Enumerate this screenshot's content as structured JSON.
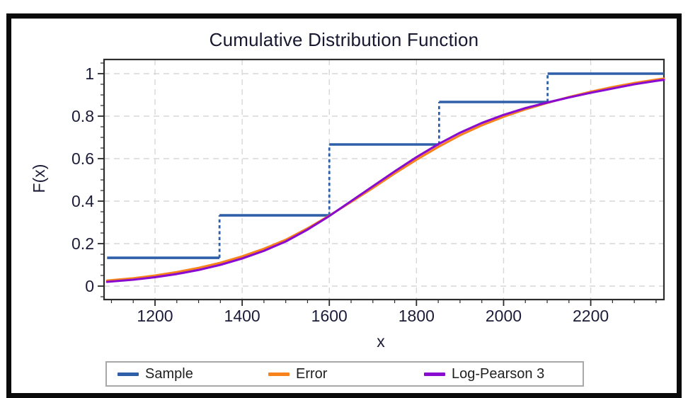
{
  "frame": {
    "border_color": "#0a0a0a",
    "background": "#ffffff"
  },
  "legend": {
    "position": "bottom",
    "items": [
      {
        "label": "Sample",
        "color": "#2e5fa8"
      },
      {
        "label": "Error",
        "color": "#f8821c"
      },
      {
        "label": "Log-Pearson 3",
        "color": "#8a0bd0"
      }
    ]
  },
  "chart_data": {
    "type": "line",
    "title": "Cumulative Distribution Function",
    "xlabel": "x",
    "ylabel": "F(x)",
    "xlim": [
      1083,
      2368
    ],
    "ylim": [
      -0.0633,
      1.0667
    ],
    "x_major_ticks": [
      1200,
      1400,
      1600,
      1800,
      2000,
      2200
    ],
    "x_minor_step": 50,
    "y_major_ticks": [
      0,
      0.2,
      0.4,
      0.6,
      0.8,
      1
    ],
    "y_tick_labels": [
      "0",
      "0.2",
      "0.4",
      "0.6",
      "0.8",
      "1"
    ],
    "y_minor_step": 0.05,
    "grid": true,
    "grid_style": "dashed",
    "legend_position": "bottom",
    "series": [
      {
        "name": "Sample",
        "kind": "empirical-step",
        "color": "#2e5fa8",
        "riser_style": "dashed",
        "points": [
          [
            1090,
            0.1333
          ],
          [
            1348,
            0.3333
          ],
          [
            1600,
            0.6667
          ],
          [
            1852,
            0.8667
          ],
          [
            2101,
            1.0
          ]
        ],
        "extend_to_x": 2368
      },
      {
        "name": "Error",
        "kind": "curve",
        "color": "#f8821c",
        "x": [
          1090,
          1150,
          1200,
          1250,
          1300,
          1350,
          1400,
          1450,
          1500,
          1550,
          1600,
          1650,
          1700,
          1750,
          1800,
          1850,
          1900,
          1950,
          2000,
          2050,
          2100,
          2150,
          2200,
          2250,
          2300,
          2350,
          2368
        ],
        "y": [
          0.026,
          0.037,
          0.05,
          0.066,
          0.086,
          0.11,
          0.14,
          0.176,
          0.218,
          0.272,
          0.332,
          0.396,
          0.462,
          0.53,
          0.595,
          0.655,
          0.71,
          0.757,
          0.797,
          0.832,
          0.862,
          0.89,
          0.915,
          0.937,
          0.956,
          0.972,
          0.977
        ]
      },
      {
        "name": "Log-Pearson 3",
        "kind": "curve",
        "color": "#8a0bd0",
        "x": [
          1090,
          1150,
          1200,
          1250,
          1300,
          1350,
          1400,
          1450,
          1500,
          1550,
          1600,
          1650,
          1700,
          1750,
          1800,
          1850,
          1900,
          1950,
          2000,
          2050,
          2100,
          2150,
          2200,
          2250,
          2300,
          2350,
          2368
        ],
        "y": [
          0.02,
          0.03,
          0.042,
          0.057,
          0.076,
          0.1,
          0.13,
          0.166,
          0.21,
          0.266,
          0.33,
          0.4,
          0.47,
          0.54,
          0.607,
          0.668,
          0.722,
          0.768,
          0.806,
          0.838,
          0.864,
          0.888,
          0.91,
          0.93,
          0.95,
          0.966,
          0.971
        ]
      }
    ]
  }
}
